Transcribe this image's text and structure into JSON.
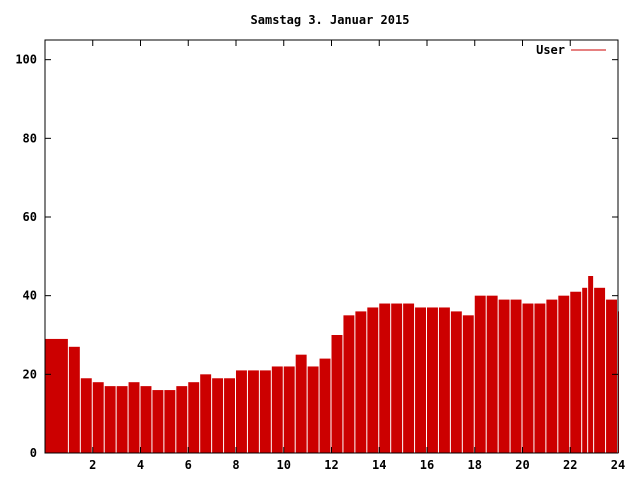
{
  "chart_data": {
    "type": "bar",
    "title": "Samstag 3. Januar 2015",
    "xlabel": "",
    "ylabel": "",
    "xlim": [
      0,
      24
    ],
    "ylim": [
      0,
      105
    ],
    "x_ticks": [
      2,
      4,
      6,
      8,
      10,
      12,
      14,
      16,
      18,
      20,
      22,
      24
    ],
    "y_ticks": [
      0,
      20,
      40,
      60,
      80,
      100
    ],
    "grid": false,
    "legend": "top-right",
    "colors": {
      "series": "#cc0000",
      "axis": "#000000",
      "background": "#ffffff"
    },
    "series": [
      {
        "name": "User",
        "points": [
          [
            0.0,
            29
          ],
          [
            1.0,
            27
          ],
          [
            1.5,
            19
          ],
          [
            2.0,
            18
          ],
          [
            2.5,
            17
          ],
          [
            3.0,
            17
          ],
          [
            3.5,
            18
          ],
          [
            4.0,
            17
          ],
          [
            4.5,
            16
          ],
          [
            5.0,
            16
          ],
          [
            5.5,
            17
          ],
          [
            6.0,
            18
          ],
          [
            6.5,
            20
          ],
          [
            7.0,
            19
          ],
          [
            7.5,
            19
          ],
          [
            8.0,
            21
          ],
          [
            8.5,
            21
          ],
          [
            9.0,
            21
          ],
          [
            9.5,
            22
          ],
          [
            10.0,
            22
          ],
          [
            10.5,
            25
          ],
          [
            11.0,
            22
          ],
          [
            11.5,
            24
          ],
          [
            12.0,
            30
          ],
          [
            12.5,
            35
          ],
          [
            13.0,
            36
          ],
          [
            13.5,
            37
          ],
          [
            14.0,
            38
          ],
          [
            14.5,
            38
          ],
          [
            15.0,
            38
          ],
          [
            15.5,
            37
          ],
          [
            16.0,
            37
          ],
          [
            16.5,
            37
          ],
          [
            17.0,
            36
          ],
          [
            17.5,
            35
          ],
          [
            18.0,
            40
          ],
          [
            18.5,
            40
          ],
          [
            19.0,
            39
          ],
          [
            19.5,
            39
          ],
          [
            20.0,
            38
          ],
          [
            20.5,
            38
          ],
          [
            21.0,
            39
          ],
          [
            21.5,
            40
          ],
          [
            22.0,
            41
          ],
          [
            22.5,
            42
          ],
          [
            22.75,
            45
          ],
          [
            23.0,
            42
          ],
          [
            23.5,
            39
          ],
          [
            24.0,
            36
          ]
        ]
      }
    ]
  }
}
